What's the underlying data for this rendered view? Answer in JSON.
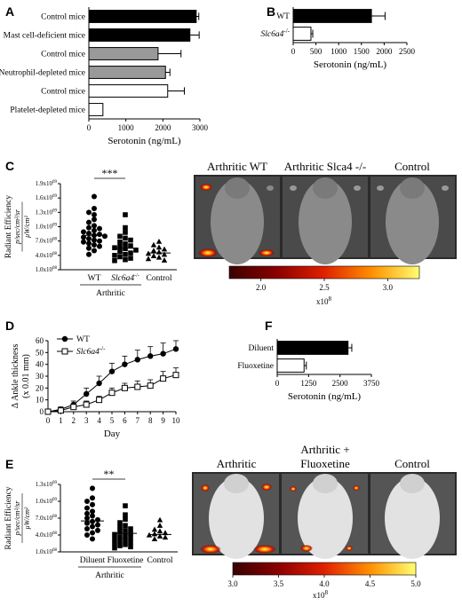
{
  "panels": {
    "A": "A",
    "B": "B",
    "C": "C",
    "D": "D",
    "E": "E",
    "F": "F"
  },
  "colors": {
    "black": "#000000",
    "gray": "#999999",
    "white": "#ffffff"
  },
  "chart_data": [
    {
      "id": "A",
      "type": "bar",
      "orientation": "horizontal",
      "categories": [
        "Control mice",
        "Mast cell-deficient mice",
        "Control mice",
        "Neutrophil-depleted mice",
        "Control mice",
        "Platelet-depleted mice"
      ],
      "values": [
        2900,
        2730,
        1870,
        2070,
        2130,
        380
      ],
      "errors": [
        70,
        250,
        620,
        120,
        450,
        0
      ],
      "fills": [
        "#000000",
        "#000000",
        "#999999",
        "#999999",
        "#ffffff",
        "#ffffff"
      ],
      "xlabel": "Serotonin (ng/mL)",
      "xlim": [
        0,
        3000
      ],
      "xticks": [
        0,
        1000,
        2000,
        3000
      ]
    },
    {
      "id": "B",
      "type": "bar",
      "orientation": "horizontal",
      "categories": [
        "WT",
        "Slc6a4 -/-"
      ],
      "values": [
        1720,
        390
      ],
      "errors": [
        300,
        40
      ],
      "fills": [
        "#000000",
        "#ffffff"
      ],
      "xlabel": "Serotonin (ng/mL)",
      "xlim": [
        0,
        2500
      ],
      "xticks": [
        0,
        500,
        1000,
        1500,
        2000,
        2500
      ]
    },
    {
      "id": "C",
      "type": "scatter",
      "groups": [
        "WT",
        "Slc6a4 -/-",
        "Control"
      ],
      "group_label": "Arthritic",
      "ylabel_top": "Radiant Efficiency",
      "ylabel_num": "p/sec/cm²/sr",
      "ylabel_den": "μW/cm²",
      "yticks": [
        "1.0x10",
        "4.0x10",
        "7.0x10",
        "1.0x10",
        "1.3x10",
        "1.6x10",
        "1.9x10"
      ],
      "ytick_exp": [
        "08",
        "08",
        "08",
        "09",
        "09",
        "09",
        "09"
      ],
      "ylim": [
        100000000,
        1900000000
      ],
      "means": [
        820000000,
        550000000,
        450000000
      ],
      "points": [
        [
          1630000000,
          1380000000,
          1300000000,
          1250000000,
          1150000000,
          1090000000,
          1020000000,
          980000000,
          960000000,
          920000000,
          890000000,
          860000000,
          840000000,
          820000000,
          800000000,
          780000000,
          750000000,
          720000000,
          700000000,
          680000000,
          650000000,
          620000000,
          590000000,
          550000000,
          500000000,
          420000000
        ],
        [
          1250000000,
          980000000,
          880000000,
          800000000,
          760000000,
          720000000,
          680000000,
          640000000,
          600000000,
          580000000,
          560000000,
          540000000,
          510000000,
          480000000,
          450000000,
          420000000,
          400000000,
          370000000,
          340000000,
          310000000,
          290000000
        ],
        [
          690000000,
          620000000,
          570000000,
          530000000,
          500000000,
          470000000,
          440000000,
          420000000,
          390000000,
          360000000,
          330000000,
          300000000
        ]
      ],
      "significance": "***"
    },
    {
      "id": "D",
      "type": "line",
      "x": [
        0,
        1,
        2,
        3,
        4,
        5,
        6,
        7,
        8,
        9,
        10
      ],
      "series": [
        {
          "name": "WT",
          "values": [
            0,
            2,
            6,
            15,
            24,
            34,
            40,
            44,
            47,
            49,
            53
          ],
          "errors": [
            0,
            2,
            3,
            5,
            6,
            7,
            7,
            8,
            8,
            9,
            7
          ]
        },
        {
          "name": "Slc6a4 -/-",
          "values": [
            0,
            1,
            4,
            6,
            10,
            16,
            20,
            21,
            22,
            28,
            31
          ],
          "errors": [
            0,
            2,
            2,
            3,
            3,
            4,
            4,
            5,
            5,
            6,
            6
          ]
        }
      ],
      "xlabel": "Day",
      "ylabel": "Δ Ankle thickness",
      "ylabel2": "(x 0.01 mm)",
      "xlim": [
        0,
        10
      ],
      "ylim": [
        0,
        60
      ],
      "yticks": [
        0,
        10,
        20,
        30,
        40,
        50,
        60
      ]
    },
    {
      "id": "F",
      "type": "bar",
      "orientation": "horizontal",
      "categories": [
        "Diluent",
        "Fluoxetine"
      ],
      "values": [
        2820,
        1070
      ],
      "errors": [
        150,
        90
      ],
      "fills": [
        "#000000",
        "#ffffff"
      ],
      "xlabel": "Serotonin (ng/mL)",
      "xlim": [
        0,
        3750
      ],
      "xticks": [
        0,
        1250,
        2500,
        3750
      ]
    },
    {
      "id": "E",
      "type": "scatter",
      "groups": [
        "Diluent",
        "Fluoxetine",
        "Control"
      ],
      "group_label": "Arthritic",
      "ylabel_top": "Radiant Efficiency",
      "ylabel_num": "p/sec/cm²/sr",
      "ylabel_den": "μW/cm²",
      "yticks": [
        "1.0x10",
        "4.0x10",
        "7.0x10",
        "1.0x10",
        "1.3x10"
      ],
      "ytick_exp": [
        "08",
        "08",
        "08",
        "09",
        "09"
      ],
      "ylim": [
        100000000,
        1300000000
      ],
      "means": [
        650000000,
        430000000,
        410000000
      ],
      "points": [
        [
          1230000000,
          1060000000,
          1000000000,
          940000000,
          880000000,
          820000000,
          780000000,
          740000000,
          700000000,
          670000000,
          640000000,
          610000000,
          580000000,
          550000000,
          510000000,
          480000000,
          440000000,
          400000000,
          330000000
        ],
        [
          920000000,
          760000000,
          680000000,
          620000000,
          570000000,
          540000000,
          510000000,
          480000000,
          460000000,
          430000000,
          410000000,
          390000000,
          370000000,
          350000000,
          330000000,
          310000000,
          290000000,
          270000000,
          250000000,
          230000000,
          210000000,
          190000000,
          170000000
        ],
        [
          670000000,
          570000000,
          500000000,
          470000000,
          440000000,
          420000000,
          400000000,
          380000000,
          360000000,
          330000000
        ]
      ],
      "significance": "**"
    }
  ],
  "imaging_C": {
    "labels": [
      "Arthritic WT",
      "Arthritic Slca4 -/-",
      "Control"
    ],
    "colorbar_ticks": [
      "2.0",
      "2.5",
      "3.0"
    ],
    "colorbar_range": [
      1.75,
      3.25
    ],
    "colorbar_mult": "x10",
    "colorbar_exp": "8"
  },
  "imaging_E": {
    "labels": [
      "Arthritic",
      "Arthritic +",
      "Fluoxetine",
      "Control"
    ],
    "colorbar_ticks": [
      "3.0",
      "3.5",
      "4.0",
      "4.5",
      "5.0"
    ],
    "colorbar_range": [
      3.0,
      5.0
    ],
    "colorbar_mult": "x10",
    "colorbar_exp": "8"
  }
}
